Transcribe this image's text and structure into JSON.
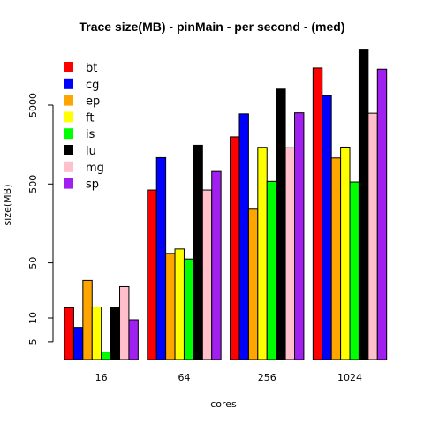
{
  "chart_data": {
    "type": "bar",
    "title": "Trace size(MB) - pinMain - per second - (med)",
    "xlabel": "cores",
    "ylabel": "size(MB)",
    "yscale": "log",
    "ylim": [
      5,
      40000
    ],
    "yticks": [
      5,
      10,
      50,
      500,
      5000
    ],
    "ytick_labels": [
      "5",
      "10",
      "50",
      "500",
      "5000"
    ],
    "categories": [
      "16",
      "64",
      "256",
      "1024"
    ],
    "legend_position": "top-left",
    "series": [
      {
        "name": "bt",
        "color": "#ff0000",
        "values": [
          13.5,
          420,
          1980,
          14800
        ]
      },
      {
        "name": "cg",
        "color": "#0000ff",
        "values": [
          7.6,
          1080,
          3880,
          6600
        ]
      },
      {
        "name": "ep",
        "color": "#ffa500",
        "values": [
          30,
          66,
          240,
          1070
        ]
      },
      {
        "name": "ft",
        "color": "#ffff00",
        "values": [
          13.8,
          75,
          1460,
          1470
        ]
      },
      {
        "name": "is",
        "color": "#00ff00",
        "values": [
          3.7,
          56,
          540,
          530
        ]
      },
      {
        "name": "lu",
        "color": "#000000",
        "values": [
          13.5,
          1550,
          8000,
          25000
        ]
      },
      {
        "name": "mg",
        "color": "#ffc0cb",
        "values": [
          25,
          420,
          1440,
          3950
        ]
      },
      {
        "name": "sp",
        "color": "#a020f0",
        "values": [
          9.5,
          720,
          4000,
          14300
        ]
      }
    ]
  }
}
